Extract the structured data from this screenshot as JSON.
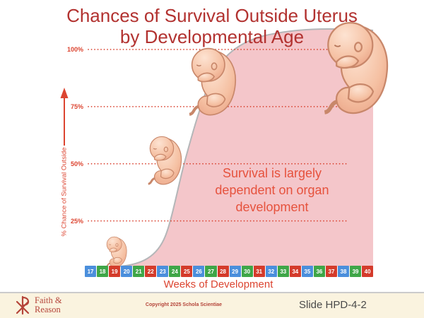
{
  "title": {
    "line1": "Chances of Survival Outside Uterus",
    "line2": "by Developmental Age"
  },
  "y_axis": {
    "label": "% Chance of Survival Outside"
  },
  "x_axis": {
    "label": "Weeks of Development"
  },
  "annotation": {
    "line1": "Survival is largely",
    "line2": "dependent on organ",
    "line3": "development"
  },
  "footer": {
    "logo_line1": "Faith &",
    "logo_line2": "Reason",
    "copyright": "Copyright 2025 Schola Scientiae",
    "slide_label": "Slide HPD-4-2"
  },
  "colors": {
    "title_red": "#b23230",
    "axis_red": "#dc4531",
    "annotation_red": "#e6523d",
    "dot_red": "#d9402e",
    "area_pink": "#f4c6ca",
    "area_border": "#b4b6b8",
    "week_blue": "#4b8fdc",
    "week_green": "#3fa648",
    "week_red": "#d43b2b",
    "footer_bg": "#faf3df",
    "footer_red": "#b5453a",
    "slide_gray": "#4a4a4a"
  },
  "chart_data": {
    "type": "area",
    "title": "Chances of Survival Outside Uterus by Developmental Age",
    "xlabel": "Weeks of Development",
    "ylabel": "% Chance of Survival Outside",
    "ylim": [
      0,
      100
    ],
    "grid": "horizontal red dotted lines at 25/50/75/100",
    "legend": "none",
    "y_ticks": [
      {
        "label": "100%",
        "pct": 100
      },
      {
        "label": "75%",
        "pct": 75
      },
      {
        "label": "50%",
        "pct": 50
      },
      {
        "label": "25%",
        "pct": 25
      }
    ],
    "weeks": [
      {
        "label": "17",
        "color": "blue",
        "survival_pct": 0
      },
      {
        "label": "18",
        "color": "green",
        "survival_pct": 0
      },
      {
        "label": "19",
        "color": "red",
        "survival_pct": 1
      },
      {
        "label": "20",
        "color": "blue",
        "survival_pct": 2
      },
      {
        "label": "21",
        "color": "green",
        "survival_pct": 5
      },
      {
        "label": "22",
        "color": "red",
        "survival_pct": 12
      },
      {
        "label": "23",
        "color": "blue",
        "survival_pct": 27
      },
      {
        "label": "24",
        "color": "green",
        "survival_pct": 45
      },
      {
        "label": "25",
        "color": "red",
        "survival_pct": 55
      },
      {
        "label": "26",
        "color": "blue",
        "survival_pct": 68
      },
      {
        "label": "27",
        "color": "green",
        "survival_pct": 78
      },
      {
        "label": "28",
        "color": "red",
        "survival_pct": 88
      },
      {
        "label": "29",
        "color": "blue",
        "survival_pct": 97
      },
      {
        "label": "30",
        "color": "green",
        "survival_pct": 100
      },
      {
        "label": "31",
        "color": "red",
        "survival_pct": 100
      },
      {
        "label": "32",
        "color": "blue",
        "survival_pct": 100
      },
      {
        "label": "33",
        "color": "green",
        "survival_pct": 100
      },
      {
        "label": "34",
        "color": "red",
        "survival_pct": 100
      },
      {
        "label": "35",
        "color": "blue",
        "survival_pct": 100
      },
      {
        "label": "36",
        "color": "green",
        "survival_pct": 100
      },
      {
        "label": "37",
        "color": "red",
        "survival_pct": 100
      },
      {
        "label": "38",
        "color": "blue",
        "survival_pct": 100
      },
      {
        "label": "39",
        "color": "green",
        "survival_pct": 100
      },
      {
        "label": "40",
        "color": "red",
        "survival_pct": 100
      }
    ],
    "annotation": "Survival is largely dependent on organ development"
  }
}
